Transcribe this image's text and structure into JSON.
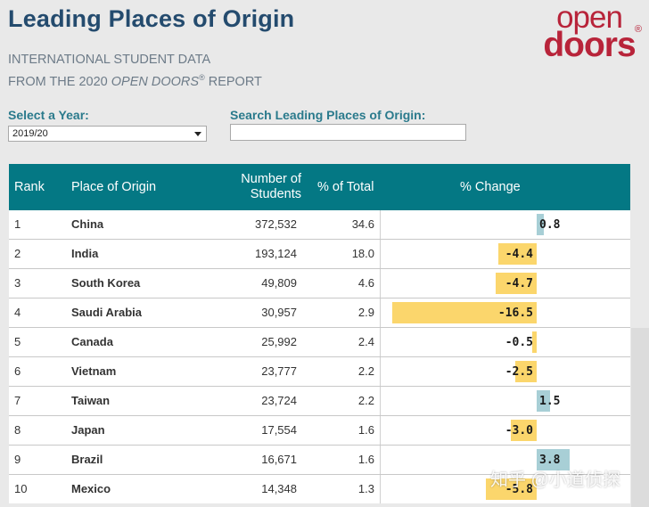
{
  "header": {
    "title": "Leading Places of Origin",
    "subtitle_line1": "INTERNATIONAL STUDENT DATA",
    "subtitle_line2_pre": "FROM THE 2020 ",
    "subtitle_line2_em": "OPEN DOORS",
    "subtitle_line2_reg": "®",
    "subtitle_line2_post": " REPORT"
  },
  "logo": {
    "top": "open",
    "bottom": "doors",
    "reg": "®"
  },
  "controls": {
    "year_label": "Select a Year:",
    "year_value": "2019/20",
    "search_label": "Search Leading Places of Origin:",
    "search_value": ""
  },
  "table": {
    "columns": {
      "rank": "Rank",
      "place": "Place of Origin",
      "num_line1": "Number of",
      "num_line2": "Students",
      "pct": "% of Total",
      "change": "% Change"
    },
    "rows": [
      {
        "rank": "1",
        "place": "China",
        "students": "372,532",
        "pct": "34.6",
        "change": 0.8,
        "change_label": "0.8"
      },
      {
        "rank": "2",
        "place": "India",
        "students": "193,124",
        "pct": "18.0",
        "change": -4.4,
        "change_label": "-4.4"
      },
      {
        "rank": "3",
        "place": "South Korea",
        "students": "49,809",
        "pct": "4.6",
        "change": -4.7,
        "change_label": "-4.7"
      },
      {
        "rank": "4",
        "place": "Saudi Arabia",
        "students": "30,957",
        "pct": "2.9",
        "change": -16.5,
        "change_label": "-16.5"
      },
      {
        "rank": "5",
        "place": "Canada",
        "students": "25,992",
        "pct": "2.4",
        "change": -0.5,
        "change_label": "-0.5"
      },
      {
        "rank": "6",
        "place": "Vietnam",
        "students": "23,777",
        "pct": "2.2",
        "change": -2.5,
        "change_label": "-2.5"
      },
      {
        "rank": "7",
        "place": "Taiwan",
        "students": "23,724",
        "pct": "2.2",
        "change": 1.5,
        "change_label": "1.5"
      },
      {
        "rank": "8",
        "place": "Japan",
        "students": "17,554",
        "pct": "1.6",
        "change": -3.0,
        "change_label": "-3.0"
      },
      {
        "rank": "9",
        "place": "Brazil",
        "students": "16,671",
        "pct": "1.6",
        "change": 3.8,
        "change_label": "3.8"
      },
      {
        "rank": "10",
        "place": "Mexico",
        "students": "14,348",
        "pct": "1.3",
        "change": -5.8,
        "change_label": "-5.8"
      }
    ]
  },
  "colors": {
    "negative": "#fbd66c",
    "positive": "#a8cfd6",
    "header_bg": "#047884"
  },
  "watermark": "知乎 @小道侦探"
}
